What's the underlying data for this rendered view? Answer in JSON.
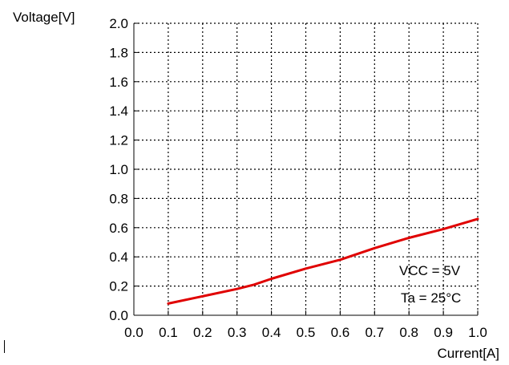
{
  "chart_data": {
    "type": "line",
    "ylabel": "Voltage[V]",
    "xlabel": "Current[A]",
    "xlim": [
      0.0,
      1.0
    ],
    "ylim": [
      0.0,
      2.0
    ],
    "x_ticks": [
      "0.0",
      "0.1",
      "0.2",
      "0.3",
      "0.4",
      "0.5",
      "0.6",
      "0.7",
      "0.8",
      "0.9",
      "1.0"
    ],
    "y_ticks": [
      "0.0",
      "0.2",
      "0.4",
      "0.6",
      "0.8",
      "1.0",
      "1.2",
      "1.4",
      "1.6",
      "1.8",
      "2.0"
    ],
    "grid": true,
    "annotations": [
      "VCC = 5V",
      "Ta = 25°C"
    ],
    "series": [
      {
        "color": "#e00000",
        "x": [
          0.1,
          0.2,
          0.3,
          0.35,
          0.4,
          0.5,
          0.6,
          0.7,
          0.8,
          0.9,
          1.0
        ],
        "y": [
          0.08,
          0.13,
          0.18,
          0.21,
          0.25,
          0.32,
          0.38,
          0.46,
          0.53,
          0.59,
          0.66
        ]
      }
    ]
  }
}
